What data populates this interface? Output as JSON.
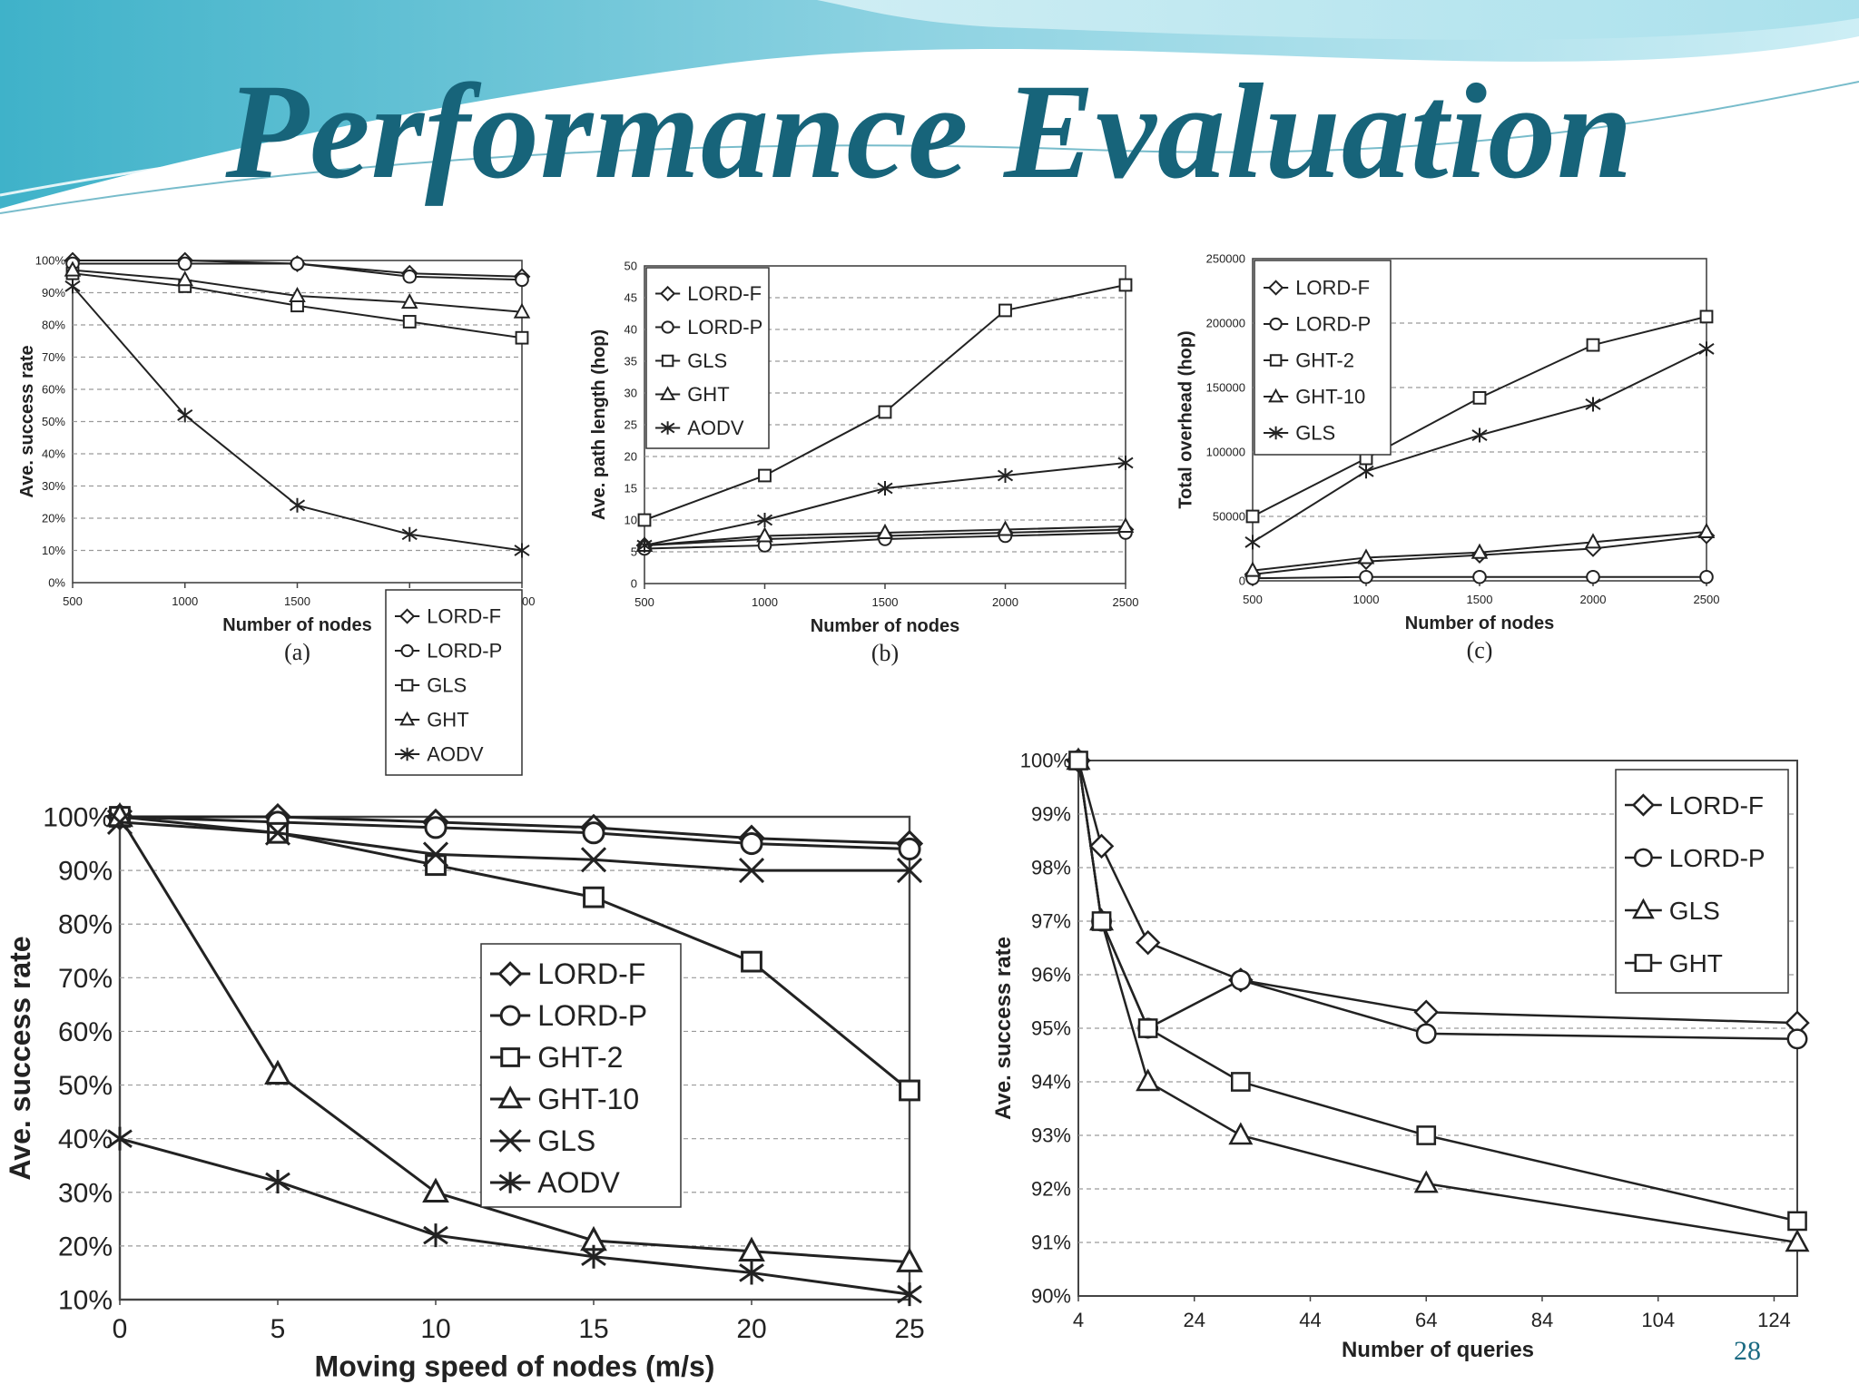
{
  "slide": {
    "title": "Performance Evaluation",
    "page_number": "28",
    "colors": {
      "title": "#17647a",
      "banner_light": "#bfe7ef",
      "banner_mid": "#7cc9da",
      "banner_dark": "#2f9bb5"
    }
  },
  "chart_data": [
    {
      "id": "a",
      "type": "line",
      "caption": "(a)",
      "xlabel": "Number of nodes",
      "ylabel": "Ave. success rate",
      "x": [
        500,
        1000,
        1500,
        2000,
        2500
      ],
      "x_ticks": [
        "500",
        "1000",
        "1500",
        "2000",
        "2500"
      ],
      "ylim": [
        0,
        100
      ],
      "y_ticks": [
        "0%",
        "10%",
        "20%",
        "30%",
        "40%",
        "50%",
        "60%",
        "70%",
        "80%",
        "90%",
        "100%"
      ],
      "grid": true,
      "legend_position": "center-right",
      "series": [
        {
          "name": "LORD-F",
          "marker": "diamond",
          "values": [
            100,
            100,
            99,
            96,
            95
          ]
        },
        {
          "name": "LORD-P",
          "marker": "circle",
          "values": [
            99,
            99,
            99,
            95,
            94
          ]
        },
        {
          "name": "GLS",
          "marker": "square",
          "values": [
            96,
            92,
            86,
            81,
            76
          ]
        },
        {
          "name": "GHT",
          "marker": "triangle",
          "values": [
            97,
            94,
            89,
            87,
            84
          ]
        },
        {
          "name": "AODV",
          "marker": "asterisk",
          "values": [
            92,
            52,
            24,
            15,
            10
          ]
        }
      ]
    },
    {
      "id": "b",
      "type": "line",
      "caption": "(b)",
      "xlabel": "Number of nodes",
      "ylabel": "Ave. path length (hop)",
      "x": [
        500,
        1000,
        1500,
        2000,
        2500
      ],
      "x_ticks": [
        "500",
        "1000",
        "1500",
        "2000",
        "2500"
      ],
      "ylim": [
        0,
        50
      ],
      "y_ticks": [
        "0",
        "5",
        "10",
        "15",
        "20",
        "25",
        "30",
        "35",
        "40",
        "45",
        "50"
      ],
      "grid": true,
      "legend_position": "top-left",
      "series": [
        {
          "name": "LORD-F",
          "marker": "diamond",
          "values": [
            6,
            7,
            7.5,
            8,
            8.5
          ]
        },
        {
          "name": "LORD-P",
          "marker": "circle",
          "values": [
            5.5,
            6,
            7,
            7.5,
            8
          ]
        },
        {
          "name": "GLS",
          "marker": "square",
          "values": [
            10,
            17,
            27,
            43,
            47
          ]
        },
        {
          "name": "GHT",
          "marker": "triangle",
          "values": [
            6,
            7.5,
            8,
            8.5,
            9
          ]
        },
        {
          "name": "AODV",
          "marker": "asterisk",
          "values": [
            6,
            10,
            15,
            17,
            19
          ]
        }
      ]
    },
    {
      "id": "c",
      "type": "line",
      "caption": "(c)",
      "xlabel": "Number of nodes",
      "ylabel": "Total overhead (hop)",
      "x": [
        500,
        1000,
        1500,
        2000,
        2500
      ],
      "x_ticks": [
        "500",
        "1000",
        "1500",
        "2000",
        "2500"
      ],
      "ylim": [
        0,
        250000
      ],
      "y_ticks": [
        "0",
        "50000",
        "100000",
        "150000",
        "200000",
        "250000"
      ],
      "grid": true,
      "legend_position": "top-left",
      "series": [
        {
          "name": "LORD-F",
          "marker": "diamond",
          "values": [
            5000,
            15000,
            20000,
            25000,
            35000
          ]
        },
        {
          "name": "LORD-P",
          "marker": "circle",
          "values": [
            2000,
            3000,
            3000,
            3000,
            3000
          ]
        },
        {
          "name": "GHT-2",
          "marker": "square",
          "values": [
            50000,
            95000,
            142000,
            183000,
            205000
          ]
        },
        {
          "name": "GHT-10",
          "marker": "triangle",
          "values": [
            8000,
            18000,
            22000,
            30000,
            38000
          ]
        },
        {
          "name": "GLS",
          "marker": "asterisk",
          "values": [
            30000,
            85000,
            113000,
            137000,
            180000
          ]
        }
      ]
    },
    {
      "id": "d",
      "type": "line",
      "caption": "",
      "xlabel": "Moving speed of nodes (m/s)",
      "ylabel": "Ave. success rate",
      "x": [
        0,
        5,
        10,
        15,
        20,
        25
      ],
      "x_ticks": [
        "0",
        "5",
        "10",
        "15",
        "20",
        "25"
      ],
      "ylim": [
        10,
        100
      ],
      "y_ticks": [
        "10%",
        "20%",
        "30%",
        "40%",
        "50%",
        "60%",
        "70%",
        "80%",
        "90%",
        "100%"
      ],
      "grid": true,
      "legend_position": "center",
      "series": [
        {
          "name": "LORD-F",
          "marker": "diamond",
          "values": [
            100,
            100,
            99,
            98,
            96,
            95
          ]
        },
        {
          "name": "LORD-P",
          "marker": "circle",
          "values": [
            100,
            99,
            98,
            97,
            95,
            94
          ]
        },
        {
          "name": "GHT-2",
          "marker": "square",
          "values": [
            100,
            97,
            91,
            85,
            73,
            49
          ]
        },
        {
          "name": "GHT-10",
          "marker": "triangle",
          "values": [
            100,
            52,
            30,
            21,
            19,
            17
          ]
        },
        {
          "name": "GLS",
          "marker": "cross",
          "values": [
            99,
            97,
            93,
            92,
            90,
            90
          ]
        },
        {
          "name": "AODV",
          "marker": "asterisk",
          "values": [
            40,
            32,
            22,
            18,
            15,
            11
          ]
        }
      ]
    },
    {
      "id": "e",
      "type": "line",
      "caption": "",
      "xlabel": "Number of queries",
      "ylabel": "Ave. success rate",
      "x": [
        4,
        8,
        16,
        32,
        64,
        128
      ],
      "x_ticks": [
        "4",
        "24",
        "44",
        "64",
        "84",
        "104",
        "124"
      ],
      "x_tick_values": [
        4,
        24,
        44,
        64,
        84,
        104,
        124
      ],
      "xlim": [
        4,
        128
      ],
      "ylim": [
        90,
        100
      ],
      "y_ticks": [
        "90%",
        "91%",
        "92%",
        "93%",
        "94%",
        "95%",
        "96%",
        "97%",
        "98%",
        "99%",
        "100%"
      ],
      "grid": true,
      "legend_position": "top-right",
      "series": [
        {
          "name": "LORD-F",
          "marker": "diamond",
          "values": [
            100,
            98.4,
            96.6,
            95.9,
            95.3,
            95.1
          ]
        },
        {
          "name": "LORD-P",
          "marker": "circle",
          "values": [
            100,
            97,
            95,
            95.9,
            94.9,
            94.8
          ]
        },
        {
          "name": "GLS",
          "marker": "triangle",
          "values": [
            100,
            97,
            94,
            93,
            92.1,
            91
          ]
        },
        {
          "name": "GHT",
          "marker": "square",
          "values": [
            100,
            97,
            95,
            94,
            93,
            91.4
          ]
        }
      ]
    }
  ]
}
